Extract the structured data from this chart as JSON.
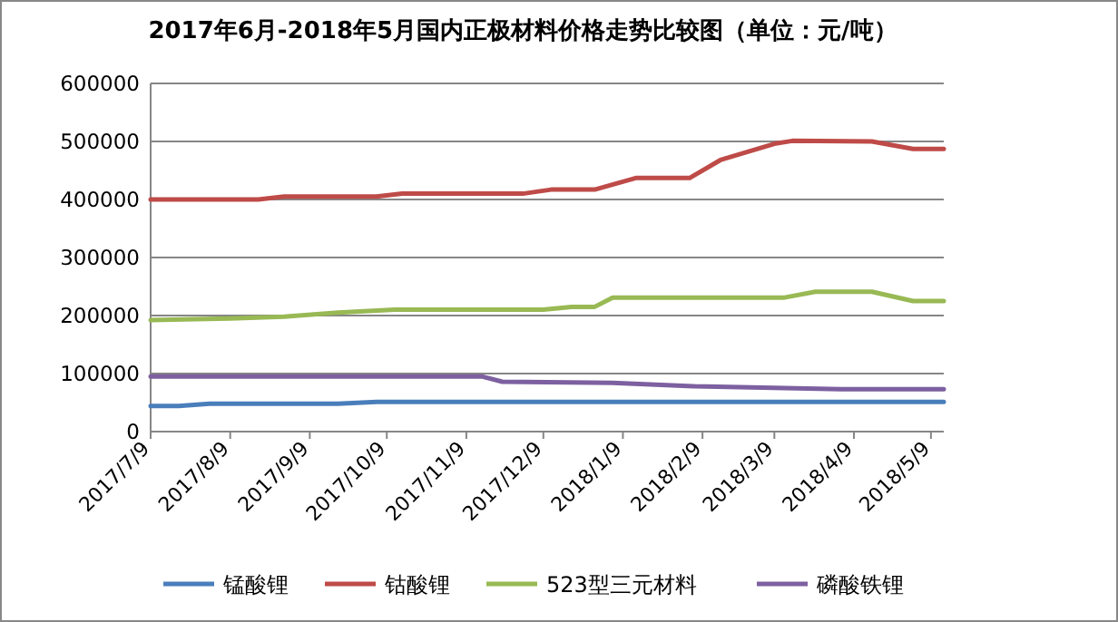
{
  "chart_data": {
    "type": "line",
    "title": "2017年6月-2018年5月国内正极材料价格走势比较图（单位：元/吨）",
    "xlim": [
      "2017-07-09",
      "2018-05-14"
    ],
    "xticks": [
      {
        "value": "2017-07-09",
        "label": "2017/7/9"
      },
      {
        "value": "2017-08-09",
        "label": "2017/8/9"
      },
      {
        "value": "2017-09-09",
        "label": "2017/9/9"
      },
      {
        "value": "2017-10-09",
        "label": "2017/10/9"
      },
      {
        "value": "2017-11-09",
        "label": "2017/11/9"
      },
      {
        "value": "2017-12-09",
        "label": "2017/12/9"
      },
      {
        "value": "2018-01-09",
        "label": "2018/1/9"
      },
      {
        "value": "2018-02-09",
        "label": "2018/2/9"
      },
      {
        "value": "2018-03-09",
        "label": "2018/3/9"
      },
      {
        "value": "2018-04-09",
        "label": "2018/4/9"
      },
      {
        "value": "2018-05-09",
        "label": "2018/5/9"
      }
    ],
    "ylim": [
      0,
      600000
    ],
    "yticks": [
      0,
      100000,
      200000,
      300000,
      400000,
      500000,
      600000
    ],
    "grid": "y",
    "legend": "bottom",
    "marker": "none",
    "line_style": "solid",
    "series": [
      {
        "name": "锰酸锂",
        "color": "#4a7ebb",
        "x": [
          "2017-07-09",
          "2017-07-20",
          "2017-08-01",
          "2017-09-20",
          "2017-10-05",
          "2018-05-14"
        ],
        "values": [
          44000,
          44000,
          48000,
          48000,
          51000,
          51000
        ]
      },
      {
        "name": "钴酸锂",
        "color": "#be4b48",
        "x": [
          "2017-07-09",
          "2017-08-20",
          "2017-08-30",
          "2017-10-05",
          "2017-10-15",
          "2017-12-01",
          "2017-12-12",
          "2017-12-29",
          "2018-01-14",
          "2018-02-04",
          "2018-02-16",
          "2018-03-09",
          "2018-03-16",
          "2018-04-16",
          "2018-05-02",
          "2018-05-14"
        ],
        "values": [
          400000,
          400000,
          405000,
          405000,
          410000,
          410000,
          417000,
          417000,
          437000,
          437000,
          468000,
          496000,
          501000,
          500000,
          487000,
          487000
        ]
      },
      {
        "name": "523型三元材料",
        "color": "#98b954",
        "x": [
          "2017-07-09",
          "2017-08-09",
          "2017-08-30",
          "2017-09-20",
          "2017-10-12",
          "2017-12-09",
          "2017-12-20",
          "2017-12-29",
          "2018-01-05",
          "2018-03-13",
          "2018-03-25",
          "2018-04-16",
          "2018-05-02",
          "2018-05-14"
        ],
        "values": [
          192000,
          195000,
          198000,
          205000,
          210000,
          210000,
          215000,
          215000,
          231000,
          231000,
          241000,
          241000,
          225000,
          225000
        ]
      },
      {
        "name": "磷酸铁锂",
        "color": "#7d60a0",
        "x": [
          "2017-07-09",
          "2017-11-15",
          "2017-11-23",
          "2018-01-05",
          "2018-02-06",
          "2018-04-04",
          "2018-05-14"
        ],
        "values": [
          95000,
          95000,
          86000,
          84000,
          78000,
          73000,
          73000
        ]
      }
    ]
  }
}
